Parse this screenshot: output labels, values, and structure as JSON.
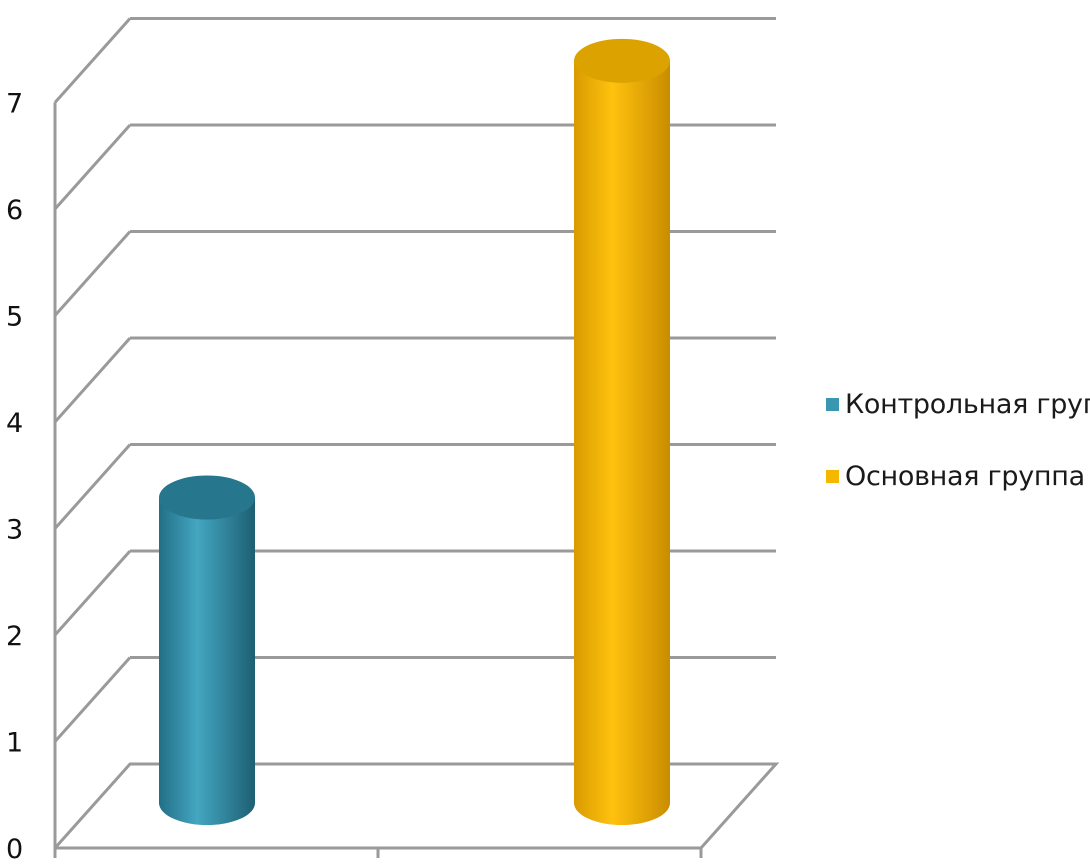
{
  "chart_data": {
    "type": "bar",
    "style": "3d-cylinder",
    "title": "",
    "xlabel": "",
    "ylabel": "",
    "categories": [
      ""
    ],
    "series": [
      {
        "name": "Контрольная группа",
        "values": [
          3.0
        ],
        "color": "#3a97b1"
      },
      {
        "name": "Основная группа",
        "values": [
          7.1
        ],
        "color": "#f5b800"
      }
    ],
    "ylim": [
      0,
      7
    ],
    "yticks": [
      "0",
      "1",
      "2",
      "3",
      "4",
      "5",
      "6",
      "7"
    ],
    "grid": true,
    "legend_position": "right"
  }
}
